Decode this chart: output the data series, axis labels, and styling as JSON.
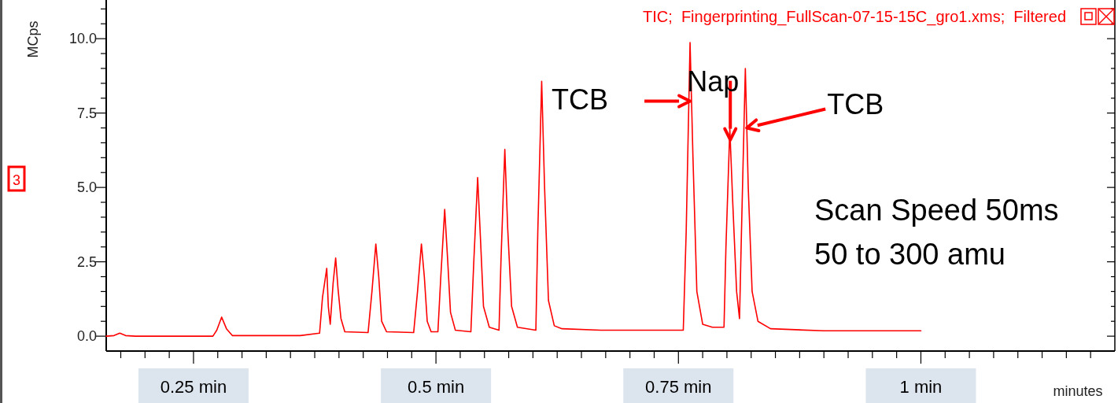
{
  "chart_data": {
    "type": "line",
    "title": "TIC;  Fingerprinting_FullScan-07-15-15C_gro1.xms;  Filtered",
    "xlabel": "minutes",
    "ylabel": "MCps",
    "annotations": [
      {
        "text": "TCB",
        "x": 0.762,
        "y": 7.9
      },
      {
        "text": "Nap",
        "x": 0.8035,
        "y": 6.6
      },
      {
        "text": "TCB",
        "x": 0.8205,
        "y": 7.0
      },
      "Scan Speed 50ms\n50 to 300 amu",
      "3"
    ],
    "xlim": [
      0.16,
      1.2
    ],
    "ylim": [
      -0.5,
      11.3
    ],
    "xticks": [
      {
        "value": 0.175,
        "label": null
      },
      {
        "value": 0.2,
        "label": null
      },
      {
        "value": 0.225,
        "label": null
      },
      {
        "value": 0.25,
        "label": "0.25 min"
      },
      {
        "value": 0.275,
        "label": null
      },
      {
        "value": 0.3,
        "label": null
      },
      {
        "value": 0.325,
        "label": null
      },
      {
        "value": 0.35,
        "label": null
      },
      {
        "value": 0.375,
        "label": null
      },
      {
        "value": 0.4,
        "label": null
      },
      {
        "value": 0.425,
        "label": null
      },
      {
        "value": 0.45,
        "label": null
      },
      {
        "value": 0.475,
        "label": null
      },
      {
        "value": 0.5,
        "label": "0.5 min"
      },
      {
        "value": 0.525,
        "label": null
      },
      {
        "value": 0.55,
        "label": null
      },
      {
        "value": 0.575,
        "label": null
      },
      {
        "value": 0.6,
        "label": null
      },
      {
        "value": 0.625,
        "label": null
      },
      {
        "value": 0.65,
        "label": null
      },
      {
        "value": 0.675,
        "label": null
      },
      {
        "value": 0.7,
        "label": null
      },
      {
        "value": 0.725,
        "label": null
      },
      {
        "value": 0.75,
        "label": "0.75 min"
      },
      {
        "value": 0.775,
        "label": null
      },
      {
        "value": 0.8,
        "label": null
      },
      {
        "value": 0.825,
        "label": null
      },
      {
        "value": 0.85,
        "label": null
      },
      {
        "value": 0.875,
        "label": null
      },
      {
        "value": 0.9,
        "label": null
      },
      {
        "value": 0.925,
        "label": null
      },
      {
        "value": 0.95,
        "label": null
      },
      {
        "value": 0.975,
        "label": null
      },
      {
        "value": 1,
        "label": "1 min"
      },
      {
        "value": 1.025,
        "label": null
      },
      {
        "value": 1.05,
        "label": null
      },
      {
        "value": 1.075,
        "label": null
      },
      {
        "value": 1.1,
        "label": null
      },
      {
        "value": 1.125,
        "label": null
      },
      {
        "value": 1.15,
        "label": null
      },
      {
        "value": 1.175,
        "label": null
      }
    ],
    "yticks": [
      {
        "value": 0,
        "label": "0.0"
      },
      {
        "value": 0.5,
        "label": null
      },
      {
        "value": 1,
        "label": null
      },
      {
        "value": 1.5,
        "label": null
      },
      {
        "value": 2,
        "label": null
      },
      {
        "value": 2.5,
        "label": "2.5"
      },
      {
        "value": 3,
        "label": null
      },
      {
        "value": 3.5,
        "label": null
      },
      {
        "value": 4,
        "label": null
      },
      {
        "value": 4.5,
        "label": null
      },
      {
        "value": 5,
        "label": "5.0"
      },
      {
        "value": 5.5,
        "label": null
      },
      {
        "value": 6,
        "label": null
      },
      {
        "value": 6.5,
        "label": null
      },
      {
        "value": 7,
        "label": null
      },
      {
        "value": 7.5,
        "label": "7.5"
      },
      {
        "value": 8,
        "label": null
      },
      {
        "value": 8.5,
        "label": null
      },
      {
        "value": 9,
        "label": null
      },
      {
        "value": 9.5,
        "label": null
      },
      {
        "value": 10,
        "label": "10.0"
      },
      {
        "value": 10.5,
        "label": null
      },
      {
        "value": 11,
        "label": null
      }
    ],
    "grid": false,
    "marker": "none",
    "line_style": "solid",
    "series": [
      {
        "color": "#ff0000",
        "x": [
          0.16,
          0.168,
          0.174,
          0.18,
          0.19,
          0.27,
          0.274,
          0.279,
          0.284,
          0.29,
          0.36,
          0.38,
          0.383,
          0.3874,
          0.389,
          0.391,
          0.394,
          0.3966,
          0.399,
          0.402,
          0.406,
          0.43,
          0.434,
          0.438,
          0.441,
          0.444,
          0.449,
          0.477,
          0.481,
          0.485,
          0.488,
          0.491,
          0.495,
          0.502,
          0.505,
          0.509,
          0.512,
          0.515,
          0.52,
          0.536,
          0.539,
          0.543,
          0.546,
          0.549,
          0.555,
          0.565,
          0.567,
          0.571,
          0.574,
          0.578,
          0.584,
          0.603,
          0.605,
          0.609,
          0.612,
          0.616,
          0.622,
          0.63,
          0.67,
          0.755,
          0.758,
          0.762,
          0.765,
          0.769,
          0.775,
          0.785,
          0.797,
          0.799,
          0.803,
          0.806,
          0.81,
          0.813,
          0.815,
          0.819,
          0.822,
          0.826,
          0.832,
          0.845,
          0.9,
          1.0
        ],
        "values": [
          0.0,
          0.02,
          0.1,
          0.02,
          0.0,
          0.0,
          0.2,
          0.64,
          0.25,
          0.02,
          0.02,
          0.1,
          1.3,
          2.28,
          1.0,
          0.4,
          1.8,
          2.63,
          1.6,
          0.6,
          0.15,
          0.12,
          1.5,
          3.1,
          2.0,
          0.5,
          0.15,
          0.12,
          1.5,
          3.1,
          2.0,
          0.5,
          0.15,
          0.15,
          2.0,
          4.26,
          2.6,
          0.8,
          0.2,
          0.15,
          2.5,
          5.33,
          3.2,
          1.0,
          0.3,
          0.2,
          2.5,
          6.28,
          3.6,
          1.0,
          0.3,
          0.2,
          3.5,
          8.57,
          5.0,
          1.2,
          0.35,
          0.25,
          0.2,
          0.2,
          3.5,
          9.87,
          6.0,
          1.5,
          0.4,
          0.3,
          0.3,
          3.0,
          6.97,
          4.5,
          1.5,
          0.59,
          3.5,
          9.0,
          5.0,
          1.5,
          0.5,
          0.25,
          0.18,
          0.18
        ]
      }
    ]
  }
}
